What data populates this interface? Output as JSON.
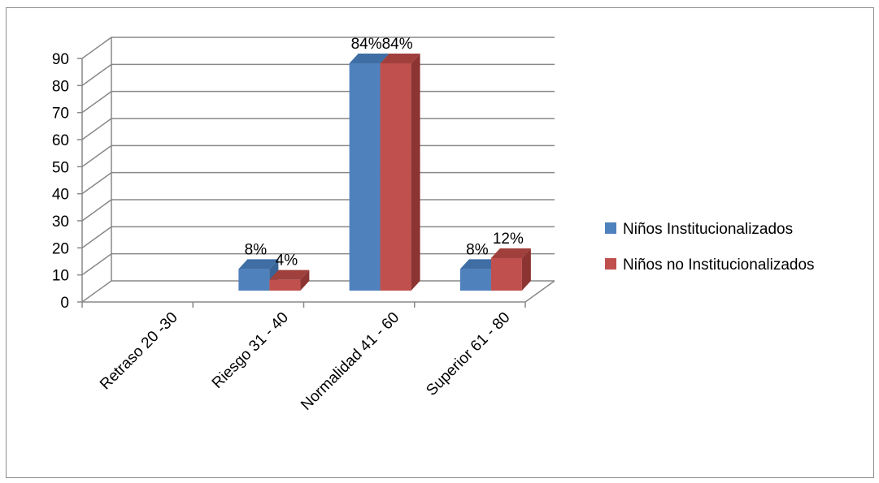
{
  "chart_data": {
    "type": "bar",
    "style": "3d-clustered-column",
    "categories": [
      "Retraso  20 -30",
      "Riesgo 31 - 40",
      "Normalidad 41 - 60",
      "Superior  61 - 80"
    ],
    "series": [
      {
        "name": "Niños Institucionalizados",
        "values": [
          0,
          8,
          84,
          8
        ],
        "labels": [
          "",
          "8%",
          "84%",
          "8%"
        ],
        "color": "#4f81bd",
        "side_color": "#3a6496",
        "top_color": "#3f6ea5"
      },
      {
        "name": "Niños no Institucionalizados",
        "values": [
          0,
          4,
          84,
          12
        ],
        "labels": [
          "",
          "4%",
          "84%",
          "12%"
        ],
        "color": "#c0504d",
        "side_color": "#8c3431",
        "top_color": "#a0403d"
      }
    ],
    "y_ticks": [
      "0",
      "10",
      "20",
      "30",
      "40",
      "50",
      "60",
      "70",
      "80",
      "90"
    ],
    "ylim": [
      0,
      90
    ],
    "grid": true,
    "legend_position": "right",
    "title": "",
    "xlabel": "",
    "ylabel": ""
  }
}
